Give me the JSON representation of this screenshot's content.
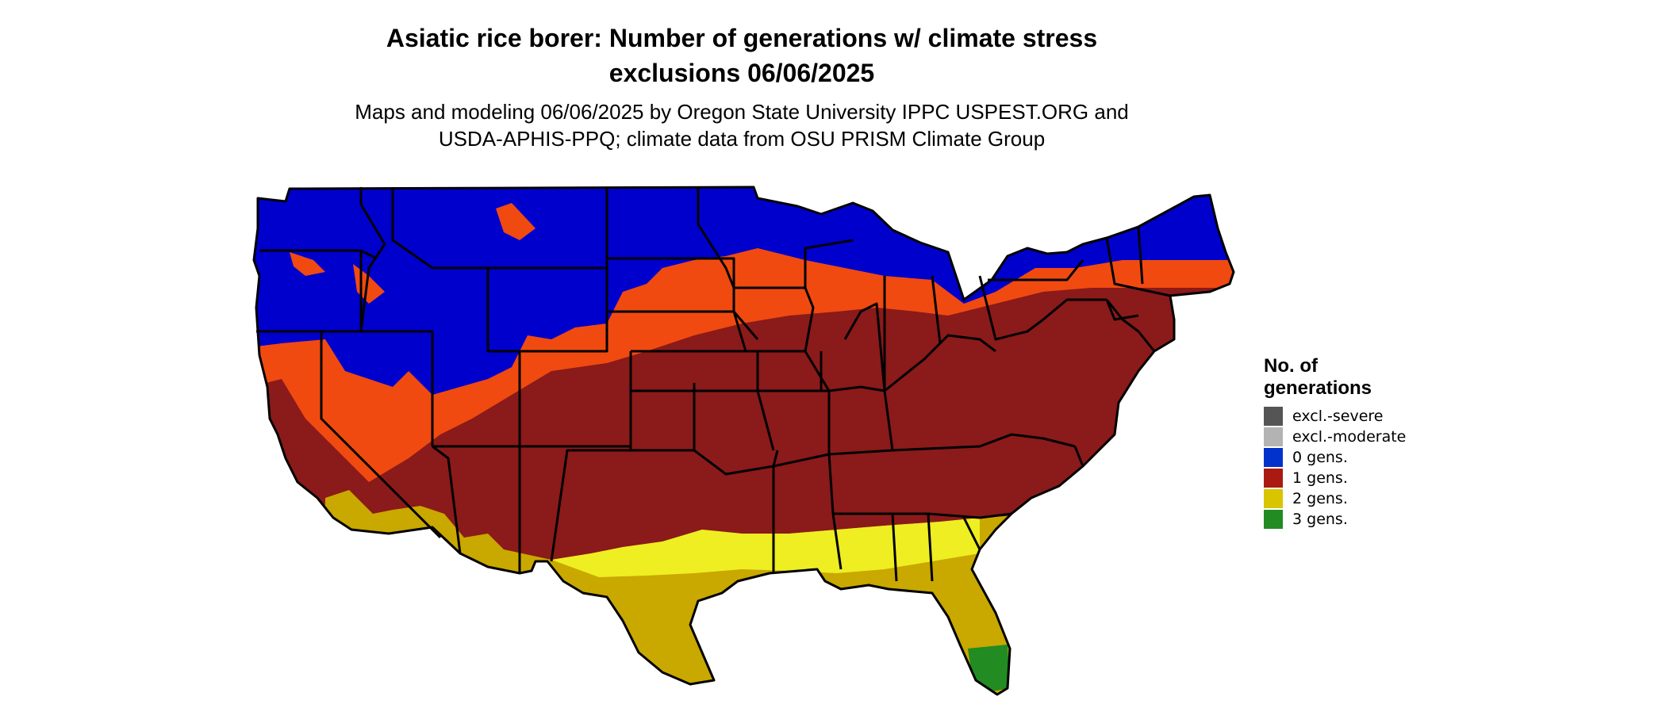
{
  "title": "Asiatic rice borer: Number of generations w/ climate stress\nexclusions 06/06/2025",
  "subtitle": "Maps and modeling 06/06/2025 by Oregon State University IPPC USPEST.ORG and\nUSDA-APHIS-PPQ; climate data from OSU PRISM Climate Group",
  "legend": {
    "title": "No. of\ngenerations",
    "items": [
      {
        "label": "excl.-severe",
        "color": "#555555"
      },
      {
        "label": "excl.-moderate",
        "color": "#b3b3b3"
      },
      {
        "label": "0 gens.",
        "color": "#0033cc"
      },
      {
        "label": "1 gens.",
        "color": "#aa1a10"
      },
      {
        "label": "2 gens.",
        "color": "#d9c400"
      },
      {
        "label": "3 gens.",
        "color": "#228b22"
      }
    ]
  },
  "map": {
    "region": "Contiguous United States",
    "zone_colors": {
      "zero_gens": "#0000cc",
      "transition": "#f04a10",
      "one_gen": "#8b1a1a",
      "two_gens": "#c9a800",
      "two_gens_light": "#eeee00",
      "three_gens": "#228b22",
      "borders": "#000000"
    }
  }
}
